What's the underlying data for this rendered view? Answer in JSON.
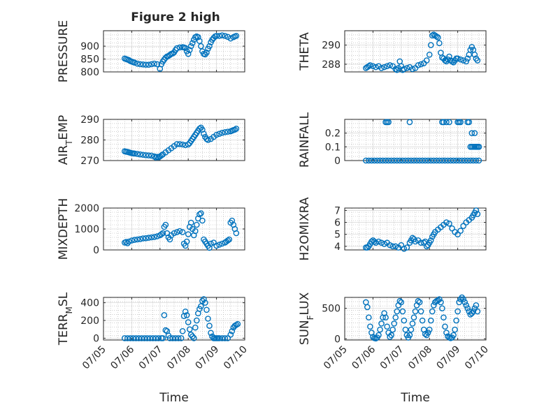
{
  "figure": {
    "title": "Figure 2 high"
  },
  "colors": {
    "marker": "#0072BD",
    "axis": "#262626",
    "grid": "#dcdcdc",
    "minor_grid": "#b0b0b0",
    "background": "#ffffff"
  },
  "time_axis": {
    "xlabel": "Time",
    "ticks": [
      {
        "x": 5,
        "label": "07/05"
      },
      {
        "x": 6,
        "label": "07/06"
      },
      {
        "x": 7,
        "label": "07/07"
      },
      {
        "x": 8,
        "label": "07/08"
      },
      {
        "x": 9,
        "label": "07/09"
      },
      {
        "x": 10,
        "label": "07/10"
      }
    ],
    "xlim": [
      5,
      10
    ]
  },
  "chart_data": [
    {
      "type": "scatter",
      "ylabel": "PRESSURE",
      "ylim": [
        800,
        960
      ],
      "yticks": [
        800,
        850,
        900
      ],
      "grid": true,
      "minor_grid": true,
      "x": [
        5.75,
        5.8,
        5.85,
        5.9,
        5.95,
        6.0,
        6.05,
        6.1,
        6.2,
        6.3,
        6.4,
        6.5,
        6.6,
        6.7,
        6.8,
        6.9,
        7.0,
        7.05,
        7.1,
        7.15,
        7.2,
        7.25,
        7.3,
        7.35,
        7.4,
        7.45,
        7.5,
        7.55,
        7.6,
        7.7,
        7.8,
        7.85,
        7.9,
        7.95,
        8.0,
        8.05,
        8.1,
        8.15,
        8.2,
        8.25,
        8.3,
        8.35,
        8.4,
        8.45,
        8.5,
        8.55,
        8.6,
        8.65,
        8.7,
        8.75,
        8.8,
        8.85,
        8.9,
        8.95,
        9.0,
        9.1,
        9.2,
        9.3,
        9.4,
        9.5,
        9.6,
        9.65,
        9.7
      ],
      "y": [
        852,
        850,
        848,
        846,
        842,
        840,
        838,
        836,
        832,
        830,
        829,
        828,
        828,
        830,
        832,
        830,
        812,
        830,
        840,
        848,
        855,
        860,
        862,
        866,
        870,
        872,
        876,
        885,
        892,
        895,
        896,
        895,
        893,
        880,
        870,
        885,
        900,
        912,
        925,
        935,
        938,
        935,
        920,
        900,
        880,
        870,
        868,
        875,
        890,
        900,
        915,
        925,
        932,
        938,
        940,
        940,
        942,
        940,
        936,
        930,
        935,
        938,
        940
      ]
    },
    {
      "type": "scatter",
      "ylabel": "THETA",
      "ylim": [
        287.2,
        291.5
      ],
      "yticks": [
        288,
        290
      ],
      "grid": true,
      "minor_grid": true,
      "x": [
        5.75,
        5.8,
        5.85,
        5.9,
        6.0,
        6.1,
        6.2,
        6.3,
        6.4,
        6.5,
        6.6,
        6.7,
        6.8,
        6.85,
        6.9,
        6.95,
        7.0,
        7.05,
        7.1,
        7.2,
        7.3,
        7.4,
        7.5,
        7.6,
        7.7,
        7.8,
        7.9,
        8.0,
        8.05,
        8.1,
        8.15,
        8.2,
        8.25,
        8.3,
        8.35,
        8.4,
        8.45,
        8.5,
        8.55,
        8.6,
        8.65,
        8.7,
        8.75,
        8.8,
        8.85,
        8.9,
        8.95,
        9.0,
        9.1,
        9.2,
        9.3,
        9.35,
        9.4,
        9.45,
        9.5,
        9.55,
        9.6,
        9.65,
        9.7
      ],
      "y": [
        287.6,
        287.7,
        287.8,
        287.9,
        287.8,
        287.7,
        287.8,
        287.6,
        287.7,
        287.8,
        287.9,
        287.8,
        287.5,
        287.4,
        287.6,
        288.3,
        287.8,
        287.4,
        287.5,
        287.6,
        287.7,
        287.5,
        287.6,
        287.9,
        288.0,
        288.1,
        288.4,
        289.0,
        290.0,
        291.0,
        291.1,
        291.0,
        290.9,
        290.8,
        290.2,
        289.2,
        288.7,
        288.6,
        288.4,
        288.3,
        288.5,
        288.8,
        288.4,
        288.3,
        288.2,
        288.4,
        288.6,
        288.6,
        288.5,
        288.4,
        288.3,
        288.6,
        289.0,
        289.5,
        289.8,
        289.5,
        289.0,
        288.6,
        288.4
      ]
    },
    {
      "type": "scatter",
      "ylabel": "AIR",
      "ylabel_sub": "T",
      "ylabel_rest": "EMP",
      "ylim": [
        270,
        290
      ],
      "yticks": [
        270,
        280,
        290
      ],
      "grid": true,
      "minor_grid": true,
      "x": [
        5.75,
        5.8,
        5.85,
        5.9,
        5.95,
        6.0,
        6.05,
        6.1,
        6.2,
        6.3,
        6.4,
        6.5,
        6.6,
        6.7,
        6.8,
        6.85,
        6.9,
        6.95,
        7.0,
        7.05,
        7.1,
        7.2,
        7.3,
        7.4,
        7.5,
        7.6,
        7.7,
        7.8,
        7.9,
        8.0,
        8.05,
        8.1,
        8.15,
        8.2,
        8.25,
        8.3,
        8.35,
        8.4,
        8.45,
        8.5,
        8.55,
        8.6,
        8.65,
        8.7,
        8.8,
        8.9,
        9.0,
        9.1,
        9.2,
        9.3,
        9.4,
        9.5,
        9.55,
        9.6,
        9.65,
        9.7
      ],
      "y": [
        274.5,
        274.3,
        274.2,
        274.0,
        273.8,
        273.6,
        273.5,
        273.4,
        273.2,
        273.0,
        272.8,
        272.6,
        272.5,
        272.4,
        272.0,
        271.5,
        271.8,
        271.6,
        272.0,
        272.5,
        273.0,
        274.0,
        275.0,
        276.0,
        277.0,
        278.0,
        278.0,
        277.8,
        277.5,
        277.8,
        278.5,
        279.5,
        280.5,
        281.5,
        282.5,
        283.5,
        284.5,
        285.5,
        286.0,
        285.0,
        283.0,
        281.5,
        280.5,
        280.0,
        280.5,
        281.5,
        282.5,
        283.0,
        283.5,
        283.8,
        284.0,
        284.2,
        284.5,
        284.8,
        285.0,
        285.5
      ]
    },
    {
      "type": "scatter",
      "ylabel": "RAINFALL",
      "ylim": [
        0,
        0.3
      ],
      "yticks": [
        0,
        0.1,
        0.2
      ],
      "ytick_labels": [
        "0",
        "0.1",
        "0.2"
      ],
      "grid": true,
      "minor_grid": true,
      "x": [
        5.75,
        5.85,
        5.95,
        6.05,
        6.15,
        6.25,
        6.35,
        6.45,
        6.55,
        6.65,
        6.75,
        6.85,
        6.95,
        7.05,
        7.15,
        7.25,
        7.35,
        7.45,
        7.55,
        7.65,
        7.75,
        7.85,
        7.95,
        8.05,
        8.15,
        8.25,
        8.35,
        8.45,
        8.55,
        8.65,
        8.75,
        8.85,
        8.95,
        9.05,
        9.15,
        9.25,
        9.35,
        9.45,
        9.55,
        9.65,
        9.75,
        6.45,
        6.5,
        6.55,
        7.3,
        8.45,
        8.5,
        8.6,
        8.7,
        9.0,
        9.05,
        9.1,
        9.35,
        9.4,
        9.5,
        9.6,
        9.65,
        9.7,
        9.75,
        9.45,
        9.5,
        9.55,
        9.6,
        9.65,
        9.7,
        9.75
      ],
      "y": [
        0,
        0,
        0,
        0,
        0,
        0,
        0,
        0,
        0,
        0,
        0,
        0,
        0,
        0,
        0,
        0,
        0,
        0,
        0,
        0,
        0,
        0,
        0,
        0,
        0,
        0,
        0,
        0,
        0,
        0,
        0,
        0,
        0,
        0,
        0,
        0,
        0,
        0,
        0,
        0,
        0,
        0.28,
        0.28,
        0.28,
        0.28,
        0.28,
        0.28,
        0.28,
        0.28,
        0.28,
        0.28,
        0.28,
        0.28,
        0.28,
        0.2,
        0.2,
        0.1,
        0.1,
        0.1,
        0.1,
        0.1,
        0.1,
        0.1,
        0.1,
        0.1,
        0.1
      ]
    },
    {
      "type": "scatter",
      "ylabel": "MIXDEPTH",
      "ylim": [
        0,
        2000
      ],
      "yticks": [
        0,
        1000,
        2000
      ],
      "grid": true,
      "minor_grid": true,
      "x": [
        5.75,
        5.8,
        5.85,
        5.9,
        6.0,
        6.1,
        6.2,
        6.3,
        6.4,
        6.5,
        6.6,
        6.7,
        6.8,
        6.9,
        7.0,
        7.05,
        7.1,
        7.15,
        7.2,
        7.25,
        7.3,
        7.35,
        7.4,
        7.5,
        7.6,
        7.7,
        7.8,
        7.85,
        7.9,
        7.95,
        8.0,
        8.05,
        8.1,
        8.15,
        8.2,
        8.25,
        8.3,
        8.35,
        8.4,
        8.45,
        8.5,
        8.55,
        8.6,
        8.65,
        8.7,
        8.75,
        8.8,
        8.9,
        9.0,
        9.1,
        9.2,
        9.3,
        9.35,
        9.4,
        9.45,
        9.5,
        9.55,
        9.6,
        9.65,
        9.7
      ],
      "y": [
        350,
        380,
        320,
        400,
        450,
        480,
        500,
        520,
        550,
        560,
        580,
        600,
        620,
        650,
        700,
        750,
        800,
        1100,
        1200,
        800,
        600,
        500,
        700,
        800,
        850,
        900,
        850,
        300,
        200,
        400,
        750,
        1100,
        1300,
        1000,
        700,
        900,
        1200,
        1500,
        1700,
        1750,
        1400,
        500,
        400,
        300,
        200,
        100,
        300,
        350,
        200,
        250,
        300,
        350,
        400,
        450,
        500,
        1300,
        1400,
        1200,
        1000,
        800
      ]
    },
    {
      "type": "scatter",
      "ylabel": "H2OMIXRA",
      "ylim": [
        3.7,
        7.2
      ],
      "yticks": [
        4,
        5,
        6,
        7
      ],
      "grid": true,
      "minor_grid": true,
      "x": [
        5.75,
        5.8,
        5.85,
        5.9,
        5.95,
        6.0,
        6.05,
        6.1,
        6.2,
        6.3,
        6.4,
        6.5,
        6.6,
        6.7,
        6.8,
        6.9,
        7.0,
        7.1,
        7.2,
        7.3,
        7.35,
        7.4,
        7.45,
        7.5,
        7.6,
        7.7,
        7.8,
        7.85,
        7.9,
        7.95,
        8.0,
        8.05,
        8.1,
        8.15,
        8.2,
        8.3,
        8.4,
        8.5,
        8.6,
        8.7,
        8.8,
        8.9,
        9.0,
        9.1,
        9.2,
        9.3,
        9.4,
        9.5,
        9.55,
        9.6,
        9.65,
        9.7
      ],
      "y": [
        3.9,
        3.9,
        4.0,
        4.2,
        4.4,
        4.5,
        4.4,
        4.3,
        4.4,
        4.3,
        4.2,
        4.3,
        4.1,
        4.0,
        4.0,
        3.9,
        4.1,
        3.8,
        3.9,
        4.3,
        4.5,
        4.7,
        4.6,
        4.4,
        4.5,
        4.3,
        4.3,
        4.4,
        4.0,
        4.1,
        4.3,
        4.5,
        4.8,
        5.0,
        5.2,
        5.4,
        5.6,
        5.8,
        6.0,
        5.9,
        5.5,
        5.2,
        5.0,
        5.3,
        5.7,
        6.0,
        6.2,
        6.4,
        6.6,
        6.8,
        7.0,
        6.7
      ]
    },
    {
      "type": "scatter",
      "ylabel": "TERR",
      "ylabel_sub": "M",
      "ylabel_rest": "SL",
      "ylim": [
        -20,
        460
      ],
      "yticks": [
        0,
        200,
        400
      ],
      "grid": true,
      "minor_grid": true,
      "x": [
        5.75,
        5.85,
        5.95,
        6.05,
        6.15,
        6.25,
        6.35,
        6.45,
        6.55,
        6.65,
        6.75,
        6.85,
        6.95,
        7.05,
        7.1,
        7.15,
        7.2,
        7.25,
        7.3,
        7.35,
        7.45,
        7.55,
        7.65,
        7.75,
        7.8,
        7.85,
        7.9,
        7.95,
        8.0,
        8.05,
        8.1,
        8.15,
        8.2,
        8.25,
        8.3,
        8.35,
        8.4,
        8.45,
        8.5,
        8.55,
        8.6,
        8.65,
        8.7,
        8.75,
        8.8,
        8.85,
        8.9,
        8.95,
        9.0,
        9.05,
        9.1,
        9.2,
        9.3,
        9.4,
        9.5,
        9.55,
        9.6,
        9.65,
        9.7,
        9.75
      ],
      "y": [
        0,
        0,
        0,
        0,
        0,
        0,
        0,
        0,
        0,
        0,
        0,
        0,
        0,
        0,
        0,
        260,
        90,
        80,
        30,
        0,
        0,
        0,
        0,
        0,
        80,
        250,
        300,
        260,
        180,
        100,
        40,
        20,
        0,
        120,
        200,
        280,
        330,
        360,
        420,
        440,
        400,
        320,
        220,
        140,
        60,
        20,
        0,
        0,
        0,
        0,
        0,
        0,
        0,
        0,
        40,
        80,
        120,
        140,
        150,
        160
      ]
    },
    {
      "type": "scatter",
      "ylabel": "SUN",
      "ylabel_sub": "F",
      "ylabel_rest": "LUX",
      "ylim": [
        -20,
        680
      ],
      "yticks": [
        0,
        500
      ],
      "grid": true,
      "minor_grid": true,
      "x": [
        5.75,
        5.8,
        5.85,
        5.9,
        5.95,
        6.0,
        6.05,
        6.1,
        6.15,
        6.2,
        6.25,
        6.3,
        6.35,
        6.4,
        6.45,
        6.5,
        6.55,
        6.6,
        6.65,
        6.7,
        6.75,
        6.8,
        6.85,
        6.9,
        6.95,
        7.0,
        7.05,
        7.1,
        7.15,
        7.2,
        7.25,
        7.3,
        7.35,
        7.4,
        7.45,
        7.5,
        7.55,
        7.6,
        7.65,
        7.7,
        7.75,
        7.8,
        7.85,
        7.9,
        7.95,
        8.0,
        8.05,
        8.1,
        8.15,
        8.2,
        8.25,
        8.3,
        8.35,
        8.4,
        8.45,
        8.5,
        8.55,
        8.6,
        8.65,
        8.7,
        8.75,
        8.8,
        8.85,
        8.9,
        8.95,
        9.0,
        9.05,
        9.1,
        9.15,
        9.2,
        9.25,
        9.3,
        9.35,
        9.4,
        9.45,
        9.5,
        9.55,
        9.6,
        9.65,
        9.7
      ],
      "y": [
        600,
        520,
        350,
        200,
        100,
        30,
        10,
        5,
        20,
        60,
        150,
        250,
        350,
        420,
        350,
        200,
        100,
        30,
        60,
        150,
        250,
        350,
        450,
        550,
        620,
        600,
        450,
        300,
        150,
        60,
        20,
        60,
        150,
        250,
        350,
        450,
        550,
        620,
        600,
        450,
        300,
        150,
        80,
        60,
        100,
        150,
        300,
        450,
        550,
        600,
        620,
        630,
        650,
        600,
        500,
        350,
        200,
        100,
        40,
        20,
        10,
        20,
        60,
        150,
        300,
        450,
        600,
        650,
        680,
        650,
        600,
        550,
        500,
        450,
        400,
        420,
        450,
        500,
        550,
        450
      ]
    }
  ]
}
